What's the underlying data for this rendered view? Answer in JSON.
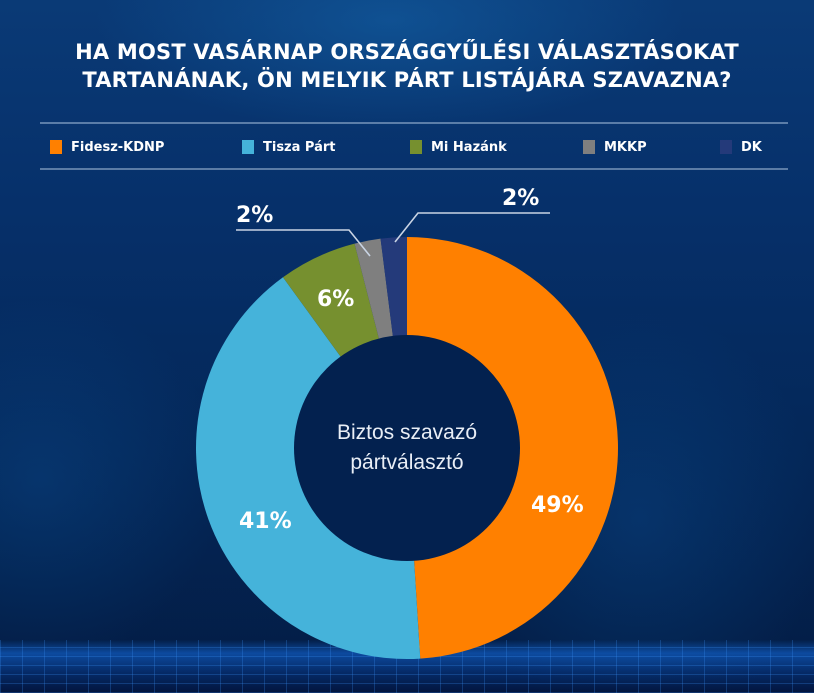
{
  "title": {
    "line1": "HA MOST VASÁRNAP ORSZÁGGYŰLÉSI VÁLASZTÁSOKAT",
    "line2": "TARTANÁNAK, ÖN MELYIK PÁRT LISTÁJÁRA SZAVAZNA?"
  },
  "legend": [
    {
      "label": "Fidesz-KDNP",
      "color": "#ff8000"
    },
    {
      "label": "Tisza Párt",
      "color": "#45b3da"
    },
    {
      "label": "Mi Hazánk",
      "color": "#76902f"
    },
    {
      "label": "MKKP",
      "color": "#7f7f7f"
    },
    {
      "label": "DK",
      "color": "#243a7a"
    }
  ],
  "center_label": {
    "line1": "Biztos szavazó",
    "line2": "pártválasztó"
  },
  "labels": {
    "fidesz": "49%",
    "tisza": "41%",
    "mihazank": "6%",
    "mkkp": "2%",
    "dk": "2%"
  },
  "chart_data": {
    "type": "pie",
    "subtype": "donut",
    "title": "HA MOST VASÁRNAP ORSZÁGGYŰLÉSI VÁLASZTÁSOKAT TARTANÁNAK, ÖN MELYIK PÁRT LISTÁJÁRA SZAVAZNA?",
    "center_text": "Biztos szavazó pártválasztó",
    "categories": [
      "Fidesz-KDNP",
      "Tisza Párt",
      "Mi Hazánk",
      "MKKP",
      "DK"
    ],
    "values": [
      49,
      41,
      6,
      2,
      2
    ],
    "unit": "%",
    "colors": [
      "#ff8000",
      "#45b3da",
      "#76902f",
      "#7f7f7f",
      "#243a7a"
    ],
    "start_angle": "12 o'clock",
    "direction": "clockwise",
    "legend_position": "top",
    "data_labels": [
      "49%",
      "41%",
      "6%",
      "2%",
      "2%"
    ]
  }
}
